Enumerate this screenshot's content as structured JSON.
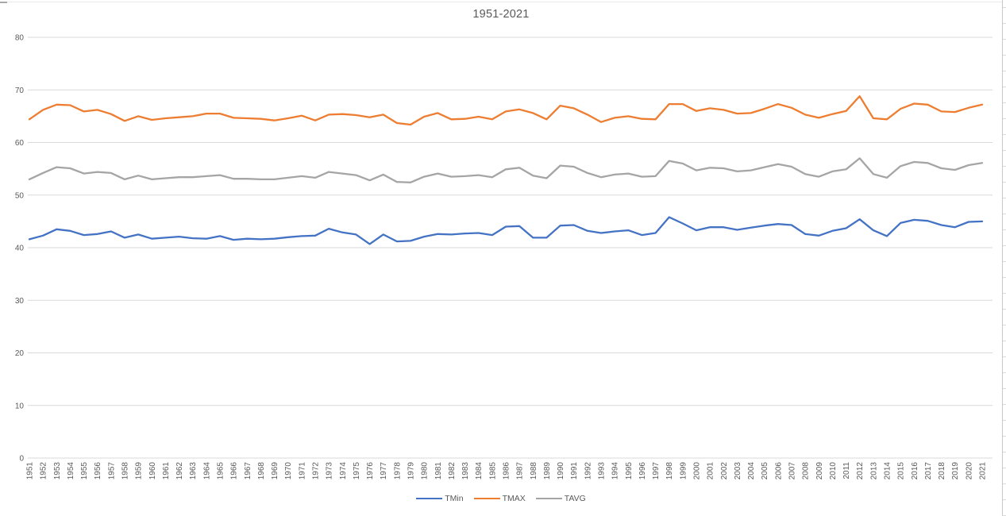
{
  "title": "1951-2021",
  "colors": {
    "background": "#ffffff",
    "gridline": "#d9d9d9",
    "axis_line": "#d9d9d9",
    "tick_text": "#595959",
    "title_text": "#595959",
    "tmin_line": "#4472C4",
    "tmax_line": "#ED7D31",
    "tavg_line": "#A5A5A5"
  },
  "legend": {
    "items": [
      "TMin",
      "TMAX",
      "TAVG"
    ]
  },
  "chart_data": {
    "type": "line",
    "title": "1951-2021",
    "xlabel": "",
    "ylabel": "",
    "ylim": [
      0,
      80
    ],
    "yticks": [
      0,
      10,
      20,
      30,
      40,
      50,
      60,
      70,
      80
    ],
    "grid": true,
    "legend_position": "bottom",
    "x": [
      1951,
      1952,
      1953,
      1954,
      1955,
      1956,
      1957,
      1958,
      1959,
      1960,
      1961,
      1962,
      1963,
      1964,
      1965,
      1966,
      1967,
      1968,
      1969,
      1970,
      1971,
      1972,
      1973,
      1974,
      1975,
      1976,
      1977,
      1978,
      1979,
      1980,
      1981,
      1982,
      1983,
      1984,
      1985,
      1986,
      1987,
      1988,
      1989,
      1990,
      1991,
      1992,
      1993,
      1994,
      1995,
      1996,
      1997,
      1998,
      1999,
      2000,
      2001,
      2002,
      2003,
      2004,
      2005,
      2006,
      2007,
      2008,
      2009,
      2010,
      2011,
      2012,
      2013,
      2014,
      2015,
      2016,
      2017,
      2018,
      2019,
      2020,
      2021
    ],
    "series": [
      {
        "name": "TMin",
        "color": "#4472C4",
        "values": [
          41.6,
          42.3,
          43.5,
          43.2,
          42.4,
          42.6,
          43.1,
          41.9,
          42.5,
          41.7,
          41.9,
          42.1,
          41.8,
          41.7,
          42.2,
          41.5,
          41.7,
          41.6,
          41.7,
          42.0,
          42.2,
          42.3,
          43.6,
          42.9,
          42.5,
          40.7,
          42.5,
          41.2,
          41.3,
          42.1,
          42.6,
          42.5,
          42.7,
          42.8,
          42.4,
          44.0,
          44.1,
          41.9,
          41.9,
          44.2,
          44.3,
          43.2,
          42.8,
          43.1,
          43.3,
          42.4,
          42.8,
          45.8,
          44.6,
          43.3,
          43.9,
          43.9,
          43.4,
          43.8,
          44.2,
          44.5,
          44.3,
          42.6,
          42.3,
          43.2,
          43.7,
          45.4,
          43.3,
          42.2,
          44.7,
          45.3,
          45.1,
          44.3,
          43.9,
          44.9,
          45.0
        ]
      },
      {
        "name": "TMAX",
        "color": "#ED7D31",
        "values": [
          64.4,
          66.2,
          67.2,
          67.1,
          65.9,
          66.2,
          65.4,
          64.1,
          65.0,
          64.3,
          64.6,
          64.8,
          65.0,
          65.5,
          65.5,
          64.7,
          64.6,
          64.5,
          64.2,
          64.6,
          65.1,
          64.2,
          65.3,
          65.4,
          65.2,
          64.8,
          65.3,
          63.7,
          63.4,
          64.9,
          65.6,
          64.4,
          64.5,
          64.9,
          64.4,
          65.9,
          66.3,
          65.6,
          64.4,
          67.0,
          66.5,
          65.3,
          63.9,
          64.7,
          65.0,
          64.5,
          64.4,
          67.3,
          67.3,
          66.0,
          66.5,
          66.2,
          65.5,
          65.6,
          66.4,
          67.3,
          66.6,
          65.3,
          64.7,
          65.4,
          66.0,
          68.8,
          64.6,
          64.4,
          66.4,
          67.4,
          67.2,
          65.9,
          65.8,
          66.6,
          67.2
        ]
      },
      {
        "name": "TAVG",
        "color": "#A5A5A5",
        "values": [
          53.0,
          54.2,
          55.3,
          55.1,
          54.1,
          54.4,
          54.2,
          53.0,
          53.7,
          53.0,
          53.2,
          53.4,
          53.4,
          53.6,
          53.8,
          53.1,
          53.1,
          53.0,
          53.0,
          53.3,
          53.6,
          53.3,
          54.4,
          54.1,
          53.8,
          52.8,
          53.9,
          52.5,
          52.4,
          53.5,
          54.1,
          53.5,
          53.6,
          53.8,
          53.4,
          54.9,
          55.2,
          53.7,
          53.2,
          55.6,
          55.4,
          54.2,
          53.4,
          53.9,
          54.1,
          53.5,
          53.6,
          56.5,
          56.0,
          54.7,
          55.2,
          55.1,
          54.5,
          54.7,
          55.3,
          55.9,
          55.4,
          54.0,
          53.5,
          54.5,
          54.9,
          57.0,
          54.0,
          53.3,
          55.5,
          56.3,
          56.1,
          55.1,
          54.8,
          55.7,
          56.1
        ]
      }
    ]
  }
}
